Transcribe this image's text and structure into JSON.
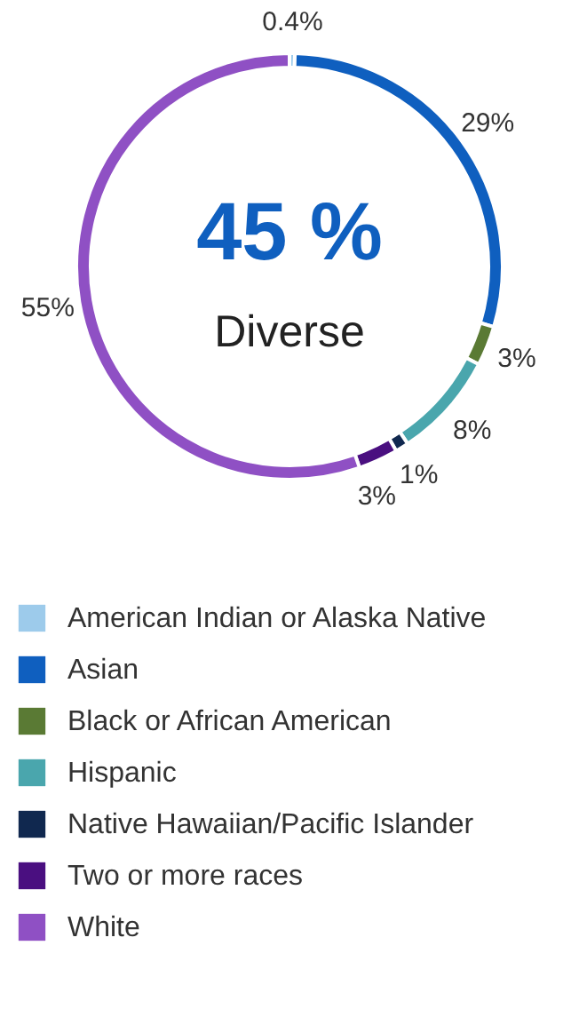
{
  "chart_data": {
    "type": "donut",
    "categories": [
      "American Indian or Alaska Native",
      "Asian",
      "Black or African American",
      "Hispanic",
      "Native Hawaiian/Pacific Islander",
      "Two or more races",
      "White"
    ],
    "values": [
      0.4,
      29,
      3,
      8,
      1,
      3,
      55
    ],
    "colors": [
      "#9dcbeb",
      "#0f5fbf",
      "#5a7a34",
      "#4aa6ad",
      "#10284f",
      "#4a0f80",
      "#8f50c4"
    ],
    "value_labels": [
      "0.4%",
      "29%",
      "3%",
      "8%",
      "1%",
      "3%",
      "55%"
    ],
    "annotations": [
      "45 %",
      "Diverse"
    ],
    "legend": "bottom"
  }
}
